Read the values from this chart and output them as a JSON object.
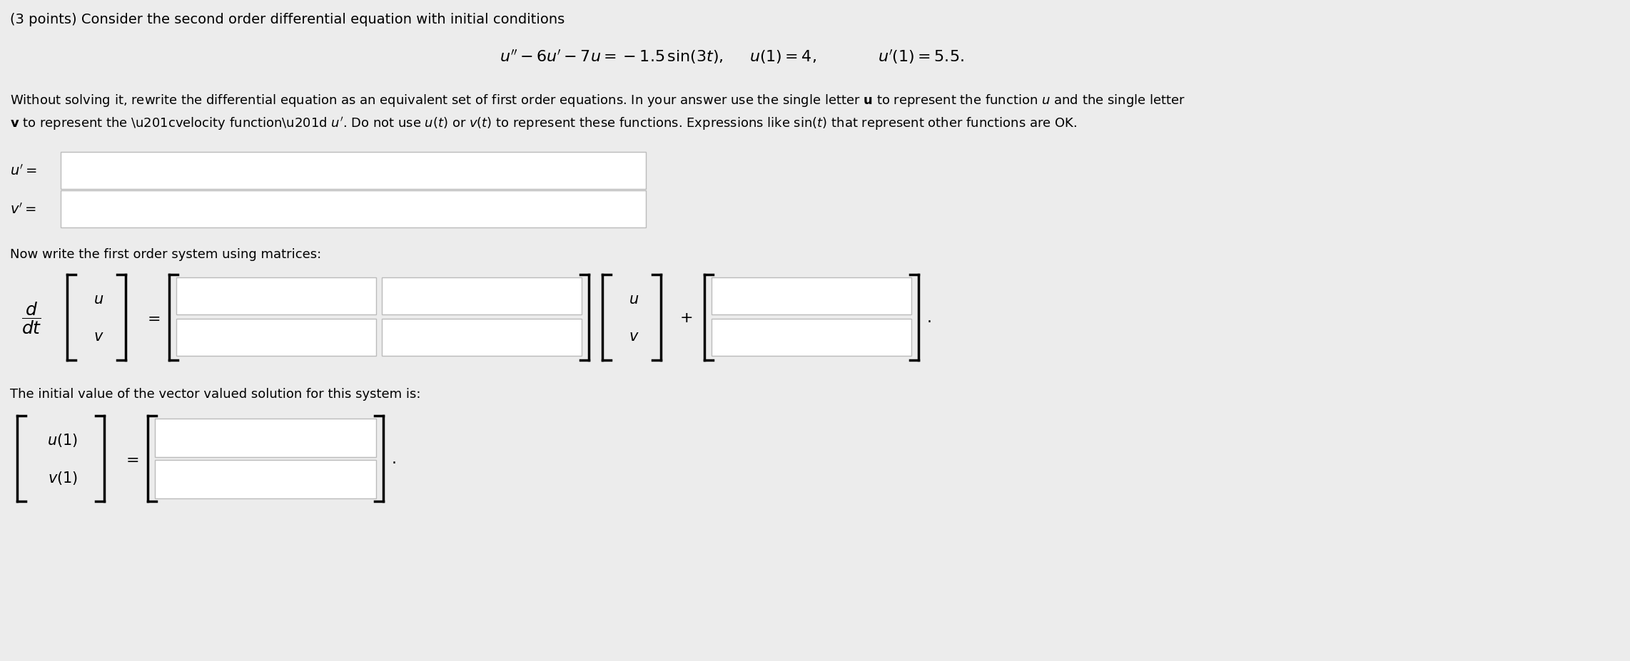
{
  "bg_color": "#ececec",
  "title_line": "(3 points) Consider the second order differential equation with initial conditions",
  "eq_part1": "$u'' - 6u' - 7u = -1.5\\,\\sin(3t)$,",
  "eq_part2": "$u(1) = 4$,",
  "eq_part3": "$u'(1) = 5.5$.",
  "para1": "Without solving it, rewrite the differential equation as an equivalent set of first order equations. In your answer use the single letter $\\mathbf{u}$ to represent the function $u$ and the single letter",
  "para2": "$\\mathbf{v}$ to represent the \\u201cvelocity function\\u201d $u'$. Do not use $u(t)$ or $v(t)$ to represent these functions. Expressions like $\\sin(t)$ that represent other functions are OK.",
  "u_prime_label": "$u' =$",
  "v_prime_label": "$v' =$",
  "matrix_label": "Now write the first order system using matrices:",
  "initial_label": "The initial value of the vector valued solution for this system is:",
  "box_color": "#ffffff",
  "box_border": "#bbbbbb",
  "text_color": "#000000",
  "font_size_title": 14,
  "font_size_eq": 16,
  "font_size_text": 13,
  "font_size_matrix": 15,
  "font_size_label": 14
}
